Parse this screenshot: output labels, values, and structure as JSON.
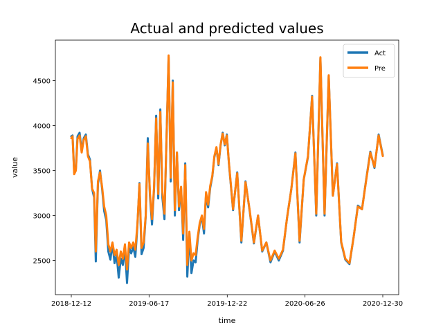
{
  "chart_data": {
    "type": "line",
    "title": "Actual and predicted values",
    "xlabel": "time",
    "ylabel": "value",
    "x_ticks": [
      "2018-12-12",
      "2019-06-17",
      "2019-12-22",
      "2020-06-26",
      "2020-12-30"
    ],
    "x_range": [
      "2018-12-12",
      "2020-12-30"
    ],
    "y_ticks": [
      2500,
      3000,
      3500,
      4000,
      4500
    ],
    "ylim": [
      2120,
      4950
    ],
    "legend_position": "top-right",
    "grid": false,
    "colors": {
      "Act": "#1f77b4",
      "Pre": "#ff7f0e"
    },
    "series": [
      {
        "name": "Act",
        "x": [
          "2018-12-12",
          "2018-12-15",
          "2018-12-19",
          "2018-12-23",
          "2018-12-27",
          "2019-01-01",
          "2019-01-06",
          "2019-01-11",
          "2019-01-16",
          "2019-01-21",
          "2019-01-26",
          "2019-01-31",
          "2019-02-05",
          "2019-02-09",
          "2019-02-14",
          "2019-02-19",
          "2019-02-24",
          "2019-03-01",
          "2019-03-06",
          "2019-03-11",
          "2019-03-16",
          "2019-03-21",
          "2019-03-26",
          "2019-03-31",
          "2019-04-05",
          "2019-04-10",
          "2019-04-15",
          "2019-04-20",
          "2019-04-25",
          "2019-04-30",
          "2019-05-05",
          "2019-05-10",
          "2019-05-15",
          "2019-05-20",
          "2019-05-25",
          "2019-05-30",
          "2019-06-04",
          "2019-06-09",
          "2019-06-14",
          "2019-06-19",
          "2019-06-24",
          "2019-06-29",
          "2019-07-04",
          "2019-07-09",
          "2019-07-14",
          "2019-07-19",
          "2019-07-24",
          "2019-07-29",
          "2019-08-03",
          "2019-08-08",
          "2019-08-13",
          "2019-08-18",
          "2019-08-23",
          "2019-08-28",
          "2019-09-02",
          "2019-09-07",
          "2019-09-12",
          "2019-09-17",
          "2019-09-22",
          "2019-09-27",
          "2019-10-02",
          "2019-10-07",
          "2019-10-12",
          "2019-10-17",
          "2019-10-22",
          "2019-10-27",
          "2019-11-01",
          "2019-11-06",
          "2019-11-11",
          "2019-11-16",
          "2019-11-21",
          "2019-11-26",
          "2019-12-01",
          "2019-12-06",
          "2019-12-11",
          "2019-12-16",
          "2019-12-21",
          "2019-12-26",
          "2020-01-05",
          "2020-01-15",
          "2020-01-25",
          "2020-02-04",
          "2020-02-14",
          "2020-02-24",
          "2020-03-05",
          "2020-03-15",
          "2020-03-25",
          "2020-04-04",
          "2020-04-14",
          "2020-04-24",
          "2020-05-04",
          "2020-05-14",
          "2020-05-24",
          "2020-06-03",
          "2020-06-13",
          "2020-06-23",
          "2020-07-03",
          "2020-07-13",
          "2020-07-23",
          "2020-08-02",
          "2020-08-12",
          "2020-08-22",
          "2020-09-01",
          "2020-09-11",
          "2020-09-21",
          "2020-10-01",
          "2020-10-11",
          "2020-10-21",
          "2020-10-31",
          "2020-11-10",
          "2020-11-20",
          "2020-11-30",
          "2020-12-10",
          "2020-12-20",
          "2020-12-30"
        ],
        "values": [
          3880,
          3890,
          3480,
          3520,
          3880,
          3920,
          3720,
          3860,
          3900,
          3680,
          3620,
          3300,
          3200,
          2490,
          3350,
          3500,
          3300,
          3050,
          2950,
          2600,
          2510,
          2690,
          2470,
          2560,
          2310,
          2520,
          2450,
          2640,
          2250,
          2640,
          2580,
          2650,
          2540,
          2880,
          3360,
          2570,
          2640,
          2990,
          3860,
          3220,
          2900,
          3300,
          4110,
          3190,
          4180,
          3200,
          2960,
          3870,
          4760,
          3380,
          4500,
          3000,
          3700,
          3060,
          3310,
          2730,
          3580,
          2320,
          2800,
          2360,
          2500,
          2480,
          2730,
          2900,
          2990,
          2800,
          3240,
          3090,
          3310,
          3430,
          3650,
          3750,
          3560,
          3780,
          3920,
          3780,
          3900,
          3580,
          3060,
          3480,
          2700,
          3380,
          3050,
          2690,
          3000,
          2600,
          2700,
          2480,
          2600,
          2500,
          2610,
          2980,
          3290,
          3700,
          2700,
          3400,
          3650,
          4330,
          3000,
          4750,
          3000,
          4550,
          3220,
          3580,
          2700,
          2510,
          2460,
          2760,
          3110,
          3070,
          3400,
          3710,
          3530,
          3900,
          3670
        ]
      },
      {
        "name": "Pre",
        "x": [
          "2018-12-12",
          "2018-12-15",
          "2018-12-19",
          "2018-12-23",
          "2018-12-27",
          "2019-01-01",
          "2019-01-06",
          "2019-01-11",
          "2019-01-16",
          "2019-01-21",
          "2019-01-26",
          "2019-01-31",
          "2019-02-05",
          "2019-02-09",
          "2019-02-14",
          "2019-02-19",
          "2019-02-24",
          "2019-03-01",
          "2019-03-06",
          "2019-03-11",
          "2019-03-16",
          "2019-03-21",
          "2019-03-26",
          "2019-03-31",
          "2019-04-05",
          "2019-04-10",
          "2019-04-15",
          "2019-04-20",
          "2019-04-25",
          "2019-04-30",
          "2019-05-05",
          "2019-05-10",
          "2019-05-15",
          "2019-05-20",
          "2019-05-25",
          "2019-05-30",
          "2019-06-04",
          "2019-06-09",
          "2019-06-14",
          "2019-06-19",
          "2019-06-24",
          "2019-06-29",
          "2019-07-04",
          "2019-07-09",
          "2019-07-14",
          "2019-07-19",
          "2019-07-24",
          "2019-07-29",
          "2019-08-03",
          "2019-08-08",
          "2019-08-13",
          "2019-08-18",
          "2019-08-23",
          "2019-08-28",
          "2019-09-02",
          "2019-09-07",
          "2019-09-12",
          "2019-09-17",
          "2019-09-22",
          "2019-09-27",
          "2019-10-02",
          "2019-10-07",
          "2019-10-12",
          "2019-10-17",
          "2019-10-22",
          "2019-10-27",
          "2019-11-01",
          "2019-11-06",
          "2019-11-11",
          "2019-11-16",
          "2019-11-21",
          "2019-11-26",
          "2019-12-01",
          "2019-12-06",
          "2019-12-11",
          "2019-12-16",
          "2019-12-21",
          "2019-12-26",
          "2020-01-05",
          "2020-01-15",
          "2020-01-25",
          "2020-02-04",
          "2020-02-14",
          "2020-02-24",
          "2020-03-05",
          "2020-03-15",
          "2020-03-25",
          "2020-04-04",
          "2020-04-14",
          "2020-04-24",
          "2020-05-04",
          "2020-05-14",
          "2020-05-24",
          "2020-06-03",
          "2020-06-13",
          "2020-06-23",
          "2020-07-03",
          "2020-07-13",
          "2020-07-23",
          "2020-08-02",
          "2020-08-12",
          "2020-08-22",
          "2020-09-01",
          "2020-09-11",
          "2020-09-21",
          "2020-10-01",
          "2020-10-11",
          "2020-10-21",
          "2020-10-31",
          "2020-11-10",
          "2020-11-20",
          "2020-11-30",
          "2020-12-10",
          "2020-12-20",
          "2020-12-30"
        ],
        "values": [
          3860,
          3880,
          3460,
          3500,
          3850,
          3890,
          3700,
          3840,
          3880,
          3660,
          3600,
          3300,
          3250,
          2600,
          3380,
          3480,
          3320,
          3100,
          3000,
          2680,
          2600,
          2700,
          2560,
          2620,
          2450,
          2600,
          2520,
          2680,
          2400,
          2700,
          2640,
          2700,
          2620,
          2900,
          3350,
          2640,
          2700,
          3000,
          3800,
          3250,
          2960,
          3320,
          4080,
          3240,
          4150,
          3260,
          3020,
          3860,
          4780,
          3420,
          4480,
          3060,
          3700,
          3100,
          3320,
          2800,
          3560,
          2450,
          2820,
          2500,
          2580,
          2560,
          2760,
          2920,
          3000,
          2850,
          3260,
          3120,
          3330,
          3440,
          3660,
          3760,
          3570,
          3790,
          3910,
          3790,
          3890,
          3590,
          3070,
          3470,
          2720,
          3370,
          3060,
          2700,
          3000,
          2610,
          2700,
          2500,
          2610,
          2520,
          2620,
          2980,
          3290,
          3690,
          2720,
          3400,
          3660,
          4320,
          3020,
          4760,
          3020,
          4560,
          3220,
          3570,
          2710,
          2520,
          2470,
          2760,
          3100,
          3070,
          3390,
          3700,
          3540,
          3890,
          3660
        ]
      }
    ]
  }
}
